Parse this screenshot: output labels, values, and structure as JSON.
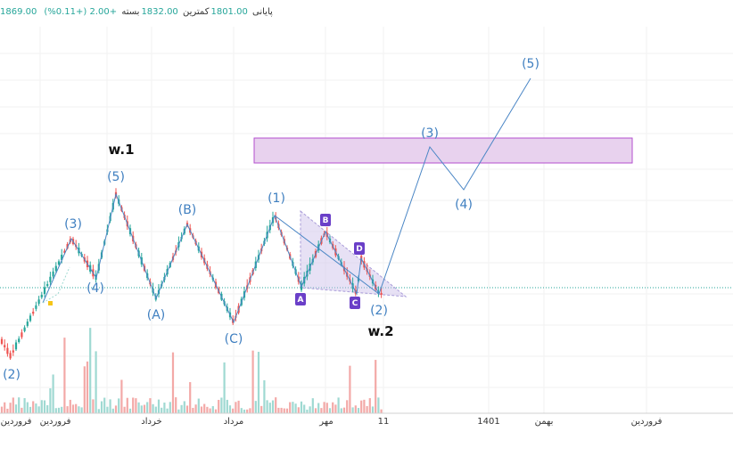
{
  "legend": {
    "close_val": "1869.00",
    "close_label": "پایانی",
    "low_val": "1801.00",
    "low_label": "کمترین",
    "last_val": "1832.00",
    "last_label": "بسته",
    "change": "+2.00 (+0.11%)"
  },
  "chart_data": {
    "type": "candlestick",
    "grid": true,
    "x_axis_labels": [
      "فروردین",
      "فروردین",
      "خرداد",
      "مرداد",
      "مهر",
      "11",
      "1401",
      "بهمن",
      "فروردین"
    ],
    "wave_labels": [
      "(2)",
      "(3)",
      "(4)",
      "(5)",
      "(A)",
      "(B)",
      "(C)",
      "(1)",
      "(2)",
      "(3)",
      "(4)",
      "(5)"
    ],
    "annotations": [
      "w.1",
      "w.2"
    ],
    "triangle_points": [
      "A",
      "B",
      "C",
      "D"
    ],
    "target_zone": true,
    "colors": {
      "up": "#26a69a",
      "down": "#ef5350",
      "wave": "#4a86c5",
      "zone_fill": "#e8d2ee",
      "zone_border": "#b34fcf",
      "triangle": "#c9bde8",
      "point_badge": "#6a3fc8"
    }
  }
}
